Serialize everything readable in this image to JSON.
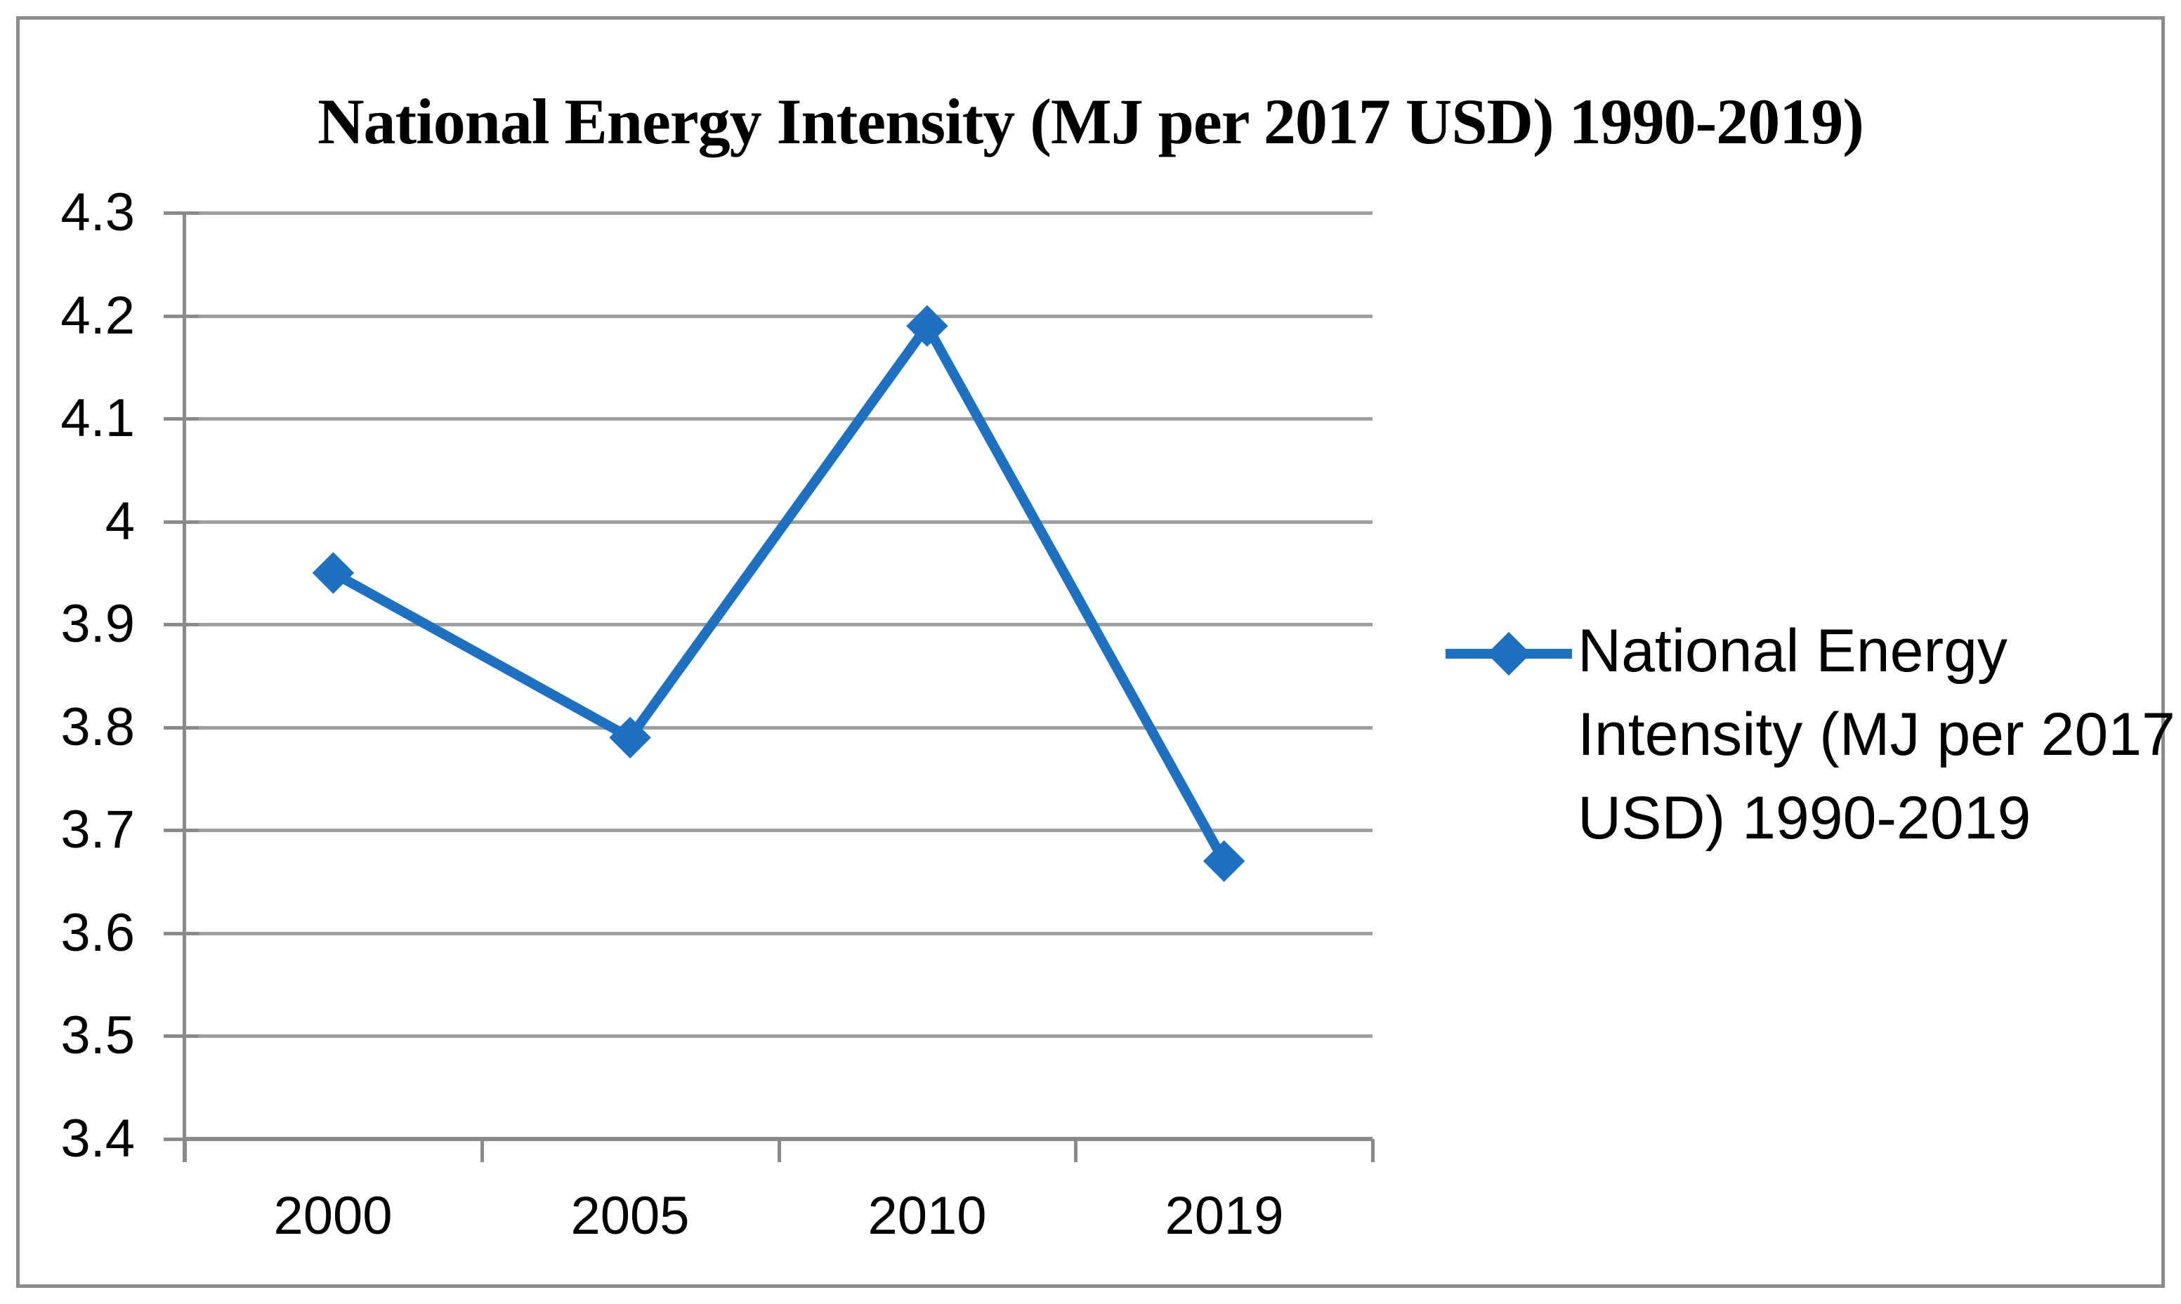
{
  "frame": {
    "border_color": "#8c8c8c",
    "background": "#ffffff"
  },
  "chart_data": {
    "type": "line",
    "title": "National Energy Intensity (MJ per 2017 USD) 1990-2019)",
    "categories": [
      "2000",
      "2005",
      "2010",
      "2019"
    ],
    "series": [
      {
        "name": "National Energy Intensity (MJ per 2017 USD) 1990-2019",
        "values": [
          3.95,
          3.79,
          4.19,
          3.67
        ],
        "color": "#1e70c1",
        "marker": "diamond"
      }
    ],
    "xlabel": "",
    "ylabel": "",
    "ylim": [
      3.4,
      4.3
    ],
    "ytick_step": 0.1,
    "ytick_labels": [
      "4.3",
      "4.2",
      "4.1",
      "4",
      "3.9",
      "3.8",
      "3.7",
      "3.6",
      "3.5",
      "3.4"
    ],
    "grid": true,
    "gridline_color": "#9e9e9e",
    "axis_color": "#8a8a8a",
    "legend_position": "right",
    "legend_lines": [
      "National Energy",
      "Intensity (MJ per 2017",
      "USD) 1990-2019"
    ]
  }
}
